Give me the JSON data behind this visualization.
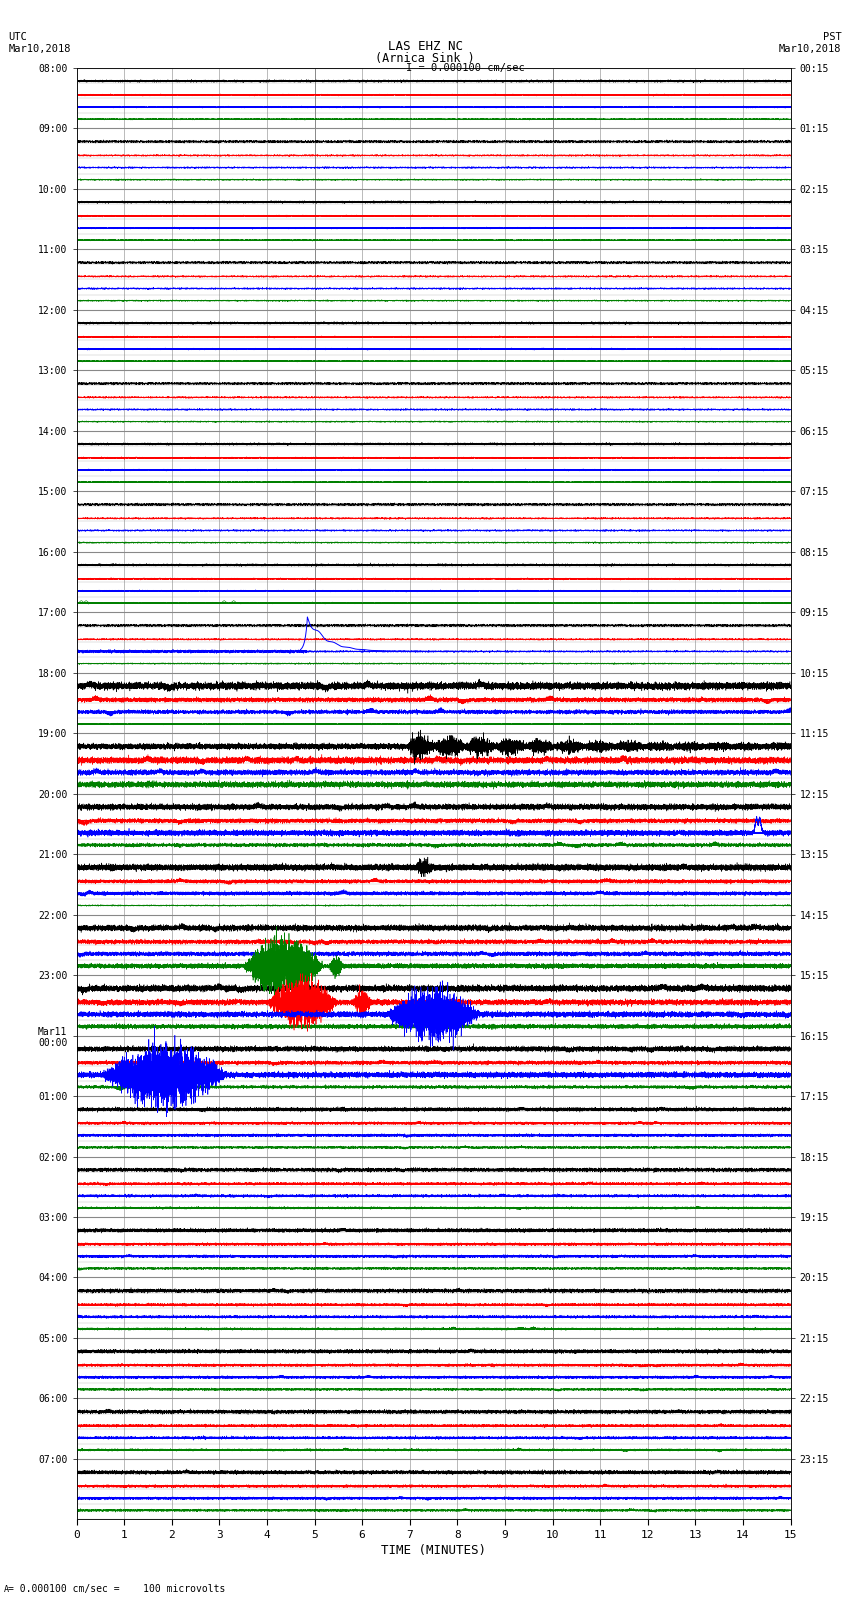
{
  "title_line1": "LAS EHZ NC",
  "title_line2": "(Arnica Sink )",
  "scale_label": "I = 0.000100 cm/sec",
  "left_label_top": "UTC",
  "left_label_date": "Mar10,2018",
  "right_label_top": "PST",
  "right_label_date": "Mar10,2018",
  "bottom_label": "TIME (MINUTES)",
  "bottom_note": "= 0.000100 cm/sec =    100 microvolts",
  "xlim": [
    0,
    15
  ],
  "num_rows": 24,
  "utc_labels": [
    "08:00",
    "09:00",
    "10:00",
    "11:00",
    "12:00",
    "13:00",
    "14:00",
    "15:00",
    "16:00",
    "17:00",
    "18:00",
    "19:00",
    "20:00",
    "21:00",
    "22:00",
    "23:00",
    "Mar11\n00:00",
    "01:00",
    "02:00",
    "03:00",
    "04:00",
    "05:00",
    "06:00",
    "07:00"
  ],
  "pst_labels": [
    "00:15",
    "01:15",
    "02:15",
    "03:15",
    "04:15",
    "05:15",
    "06:15",
    "07:15",
    "08:15",
    "09:15",
    "10:15",
    "11:15",
    "12:15",
    "13:15",
    "14:15",
    "15:15",
    "16:15",
    "17:15",
    "18:15",
    "19:15",
    "20:15",
    "21:15",
    "22:15",
    "23:15"
  ],
  "background_color": "#ffffff",
  "grid_color": "#888888"
}
